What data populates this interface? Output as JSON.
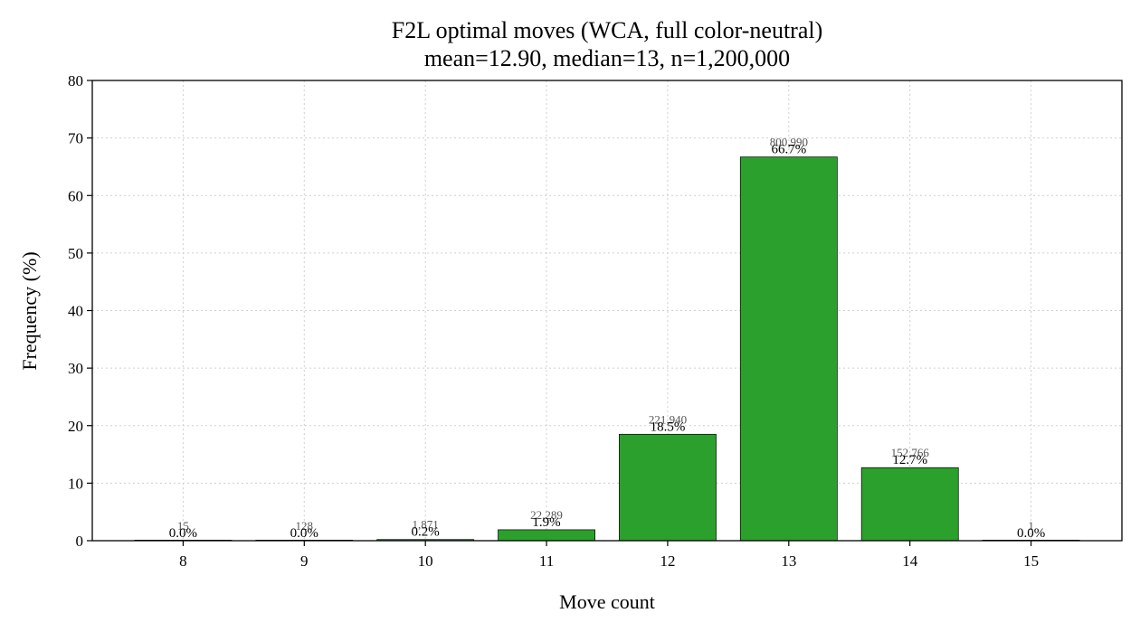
{
  "colors": {
    "bar": "#2ca02c",
    "bar_edge": "#000000",
    "grid": "#cfcfcf"
  },
  "chart_data": {
    "type": "bar",
    "title": "F2L optimal moves (WCA, full color-neutral)",
    "subtitle": "mean=12.90, median=13, n=1,200,000",
    "xlabel": "Move count",
    "ylabel": "Frequency (%)",
    "ylim": [
      0,
      80
    ],
    "yticks": [
      0,
      10,
      20,
      30,
      40,
      50,
      60,
      70,
      80
    ],
    "grid": true,
    "categories": [
      "8",
      "9",
      "10",
      "11",
      "12",
      "13",
      "14",
      "15"
    ],
    "values": [
      0.0,
      0.0,
      0.2,
      1.9,
      18.5,
      66.7,
      12.7,
      0.0
    ],
    "value_labels": [
      "0.0%",
      "0.0%",
      "0.2%",
      "1.9%",
      "18.5%",
      "66.7%",
      "12.7%",
      "0.0%"
    ],
    "counts": [
      "15",
      "128",
      "1,871",
      "22,289",
      "221,940",
      "800,990",
      "152,766",
      "1"
    ]
  }
}
